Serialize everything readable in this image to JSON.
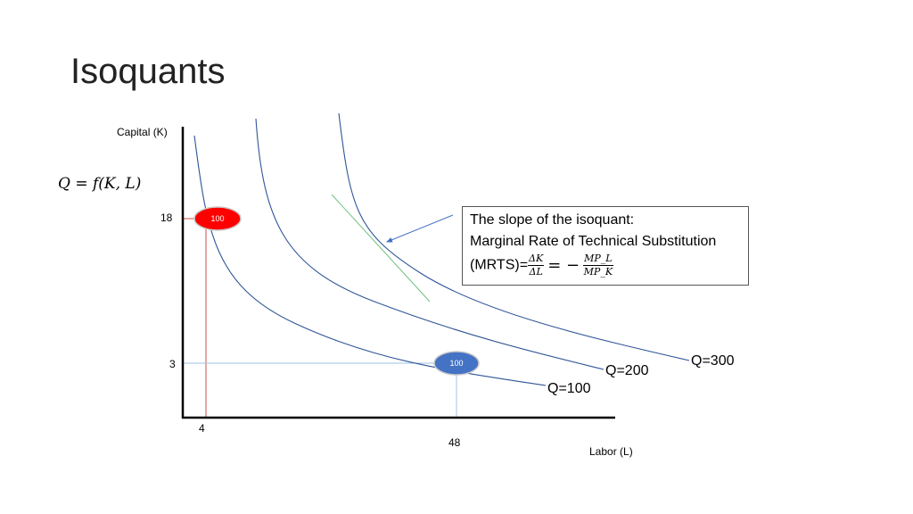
{
  "slide": {
    "title": "Isoquants",
    "formula": "Q = f(K, L)"
  },
  "annotation": {
    "line1": "The slope of the isoquant:",
    "line2": "Marginal Rate of Technical Substitution",
    "mrts_prefix": "(MRTS)=",
    "frac1_num": "ΔK",
    "frac1_den": "ΔL",
    "equals_minus": "= −",
    "frac2_num": "MP_L",
    "frac2_den": "MP_K"
  },
  "chart_data": {
    "type": "line",
    "title": "",
    "xlabel": "Labor (L)",
    "ylabel": "Capital (K)",
    "x_ticks": [
      "4",
      "48"
    ],
    "y_ticks": [
      "18",
      "3"
    ],
    "series": [
      {
        "name": "Q=100",
        "label": "Q=100"
      },
      {
        "name": "Q=200",
        "label": "Q=200"
      },
      {
        "name": "Q=300",
        "label": "Q=300"
      }
    ],
    "points": [
      {
        "L": 4,
        "K": 18,
        "label": "100",
        "color": "#ff0000"
      },
      {
        "L": 48,
        "K": 3,
        "label": "100",
        "color": "#4472c4"
      }
    ],
    "colors": {
      "curve": "#2f5597",
      "tangent": "#70c080",
      "arrow": "#4472c4",
      "red_guides": "#c00000",
      "blue_guides": "#9dc3e6"
    },
    "grid": false
  }
}
